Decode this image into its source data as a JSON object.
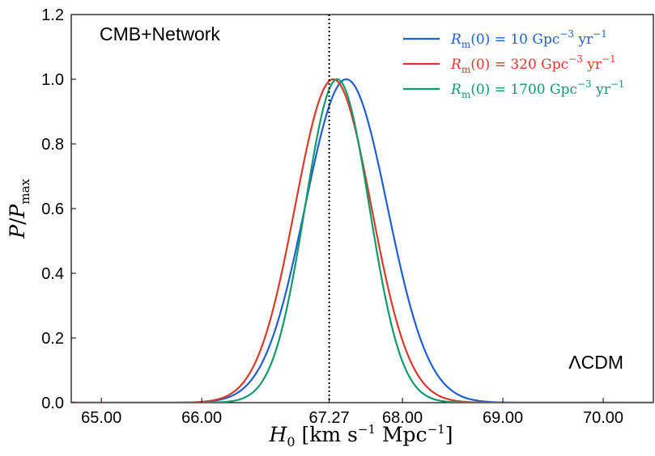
{
  "chart_data": {
    "type": "line",
    "title": "",
    "annotation_top_left": "CMB+Network",
    "annotation_bottom_right": "ΛCDM",
    "xlabel": "H0 [km s^-1 Mpc^-1]",
    "ylabel": "P/P_max",
    "xlim": [
      64.7,
      70.5
    ],
    "ylim": [
      0.0,
      1.2
    ],
    "x_ticks": [
      65.0,
      66.0,
      67.27,
      68.0,
      69.0,
      70.0
    ],
    "x_tick_labels": [
      "65.00",
      "66.00",
      "67.27",
      "68.00",
      "69.00",
      "70.00"
    ],
    "y_ticks": [
      0.0,
      0.2,
      0.4,
      0.6,
      0.8,
      1.0,
      1.2
    ],
    "y_tick_labels": [
      "0.0",
      "0.2",
      "0.4",
      "0.6",
      "0.8",
      "1.0",
      "1.2"
    ],
    "reference_line": {
      "x": 67.27,
      "style": "dotted",
      "color": "#000000"
    },
    "legend_position": "top-right",
    "series": [
      {
        "name": "R_m(0) = 10 Gpc^-3 yr^-1",
        "legend_label": {
          "prefix": "R",
          "sub": "m",
          "rest": "(0) = 10 Gpc",
          "sup": "−3",
          "tail": " yr",
          "sup2": "−1"
        },
        "color": "#1f5fd1",
        "mean": 67.44,
        "sigma": 0.41,
        "peak": 1.0
      },
      {
        "name": "R_m(0) = 320 Gpc^-3 yr^-1",
        "legend_label": {
          "prefix": "R",
          "sub": "m",
          "rest": "(0) = 320 Gpc",
          "sup": "−3",
          "tail": " yr",
          "sup2": "−1"
        },
        "color": "#d93a2b",
        "mean": 67.31,
        "sigma": 0.38,
        "peak": 1.0
      },
      {
        "name": "R_m(0) = 1700 Gpc^-3 yr^-1",
        "legend_label": {
          "prefix": "R",
          "sub": "m",
          "rest": "(0) = 1700 Gpc",
          "sup": "−3",
          "tail": " yr",
          "sup2": "−1"
        },
        "color": "#0f9b6a",
        "mean": 67.35,
        "sigma": 0.32,
        "peak": 1.0
      }
    ]
  }
}
